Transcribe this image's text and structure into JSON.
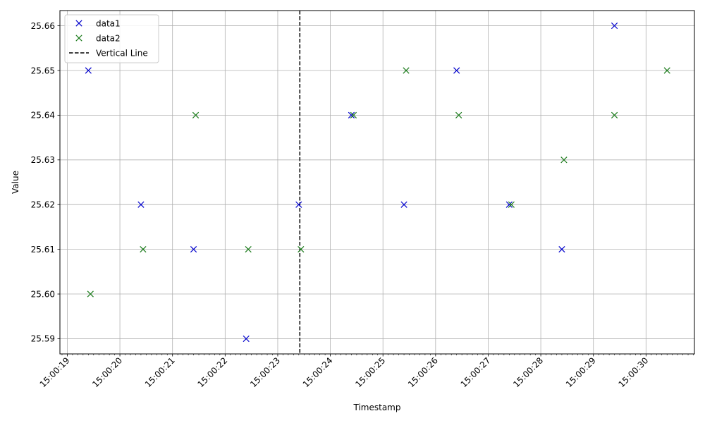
{
  "chart_data": {
    "type": "scatter",
    "title": "",
    "xlabel": "Timestamp",
    "ylabel": "Value",
    "x_time_format": "HH:MM:SS",
    "xlim": [
      "15:00:18.860",
      "15:00:30.920"
    ],
    "ylim": [
      25.5866,
      25.6634
    ],
    "x_ticks": [
      "15:00:19",
      "15:00:20",
      "15:00:21",
      "15:00:22",
      "15:00:23",
      "15:00:24",
      "15:00:25",
      "15:00:26",
      "15:00:27",
      "15:00:28",
      "15:00:29",
      "15:00:30"
    ],
    "y_ticks": [
      25.59,
      25.6,
      25.61,
      25.62,
      25.63,
      25.64,
      25.65,
      25.66
    ],
    "y_tick_labels": [
      "25.59",
      "25.60",
      "25.61",
      "25.62",
      "25.63",
      "25.64",
      "25.65",
      "25.66"
    ],
    "grid": true,
    "legend_position": "top-left",
    "series": [
      {
        "name": "data1",
        "color": "#0000cc",
        "marker": "x",
        "points": [
          {
            "x": "15:00:19.400",
            "y": 25.65
          },
          {
            "x": "15:00:20.400",
            "y": 25.62
          },
          {
            "x": "15:00:21.400",
            "y": 25.61
          },
          {
            "x": "15:00:22.400",
            "y": 25.59
          },
          {
            "x": "15:00:23.400",
            "y": 25.62
          },
          {
            "x": "15:00:24.400",
            "y": 25.64
          },
          {
            "x": "15:00:25.400",
            "y": 25.62
          },
          {
            "x": "15:00:26.400",
            "y": 25.65
          },
          {
            "x": "15:00:27.400",
            "y": 25.62
          },
          {
            "x": "15:00:28.400",
            "y": 25.61
          },
          {
            "x": "15:00:29.400",
            "y": 25.66
          }
        ]
      },
      {
        "name": "data2",
        "color": "#1a7a1a",
        "marker": "x",
        "points": [
          {
            "x": "15:00:19.440",
            "y": 25.6
          },
          {
            "x": "15:00:20.440",
            "y": 25.61
          },
          {
            "x": "15:00:21.440",
            "y": 25.64
          },
          {
            "x": "15:00:22.440",
            "y": 25.61
          },
          {
            "x": "15:00:23.440",
            "y": 25.61
          },
          {
            "x": "15:00:24.440",
            "y": 25.64
          },
          {
            "x": "15:00:25.440",
            "y": 25.65
          },
          {
            "x": "15:00:26.440",
            "y": 25.64
          },
          {
            "x": "15:00:27.440",
            "y": 25.62
          },
          {
            "x": "15:00:28.440",
            "y": 25.63
          },
          {
            "x": "15:00:29.400",
            "y": 25.64
          },
          {
            "x": "15:00:30.400",
            "y": 25.65
          }
        ]
      }
    ],
    "vertical_line": {
      "name": "Vertical Line",
      "x": "15:00:23.420",
      "color": "#000000",
      "style": "dashed"
    }
  }
}
